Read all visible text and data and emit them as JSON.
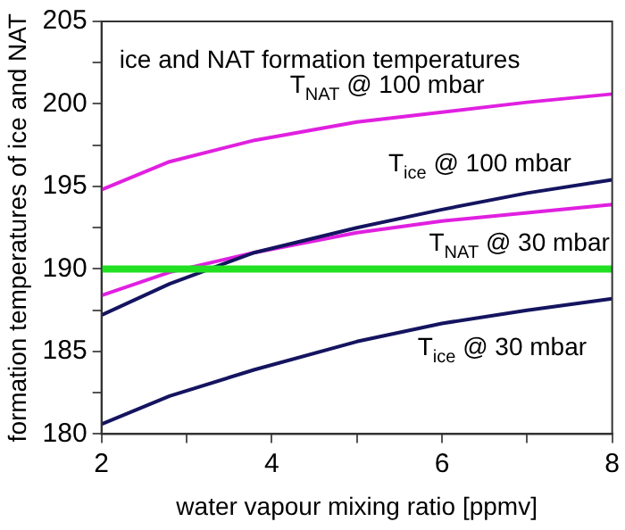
{
  "chart_data": {
    "type": "line",
    "title": "ice and NAT formation temperatures",
    "xlabel": "water vapour mixing ratio [ppmv]",
    "ylabel": "formation temperatures of ice and NAT",
    "series": [
      {
        "name": "T$_{NAT}$ @ 100 mbar",
        "color": "#e020e0",
        "x": [
          2,
          2.8,
          3.8,
          5,
          6,
          7,
          8
        ],
        "values": [
          194.8,
          196.5,
          197.8,
          198.9,
          199.5,
          200.1,
          200.6
        ]
      },
      {
        "name": "T$_{ice}$ @ 100 mbar",
        "color": "#141460",
        "x": [
          2,
          2.8,
          3.8,
          5,
          6,
          7,
          8
        ],
        "values": [
          187.2,
          189.1,
          191.0,
          192.5,
          193.6,
          194.6,
          195.4
        ]
      },
      {
        "name": "T$_{NAT}$ @ 30 mbar",
        "color": "#e020e0",
        "x": [
          2,
          2.8,
          3.8,
          5,
          6,
          7,
          8
        ],
        "values": [
          188.4,
          189.8,
          191.0,
          192.2,
          192.9,
          193.4,
          193.9
        ]
      },
      {
        "name": "T$_{ice}$ @ 30 mbar",
        "color": "#141460",
        "x": [
          2,
          2.8,
          3.8,
          5,
          6,
          7,
          8
        ],
        "values": [
          180.6,
          182.3,
          183.9,
          185.6,
          186.7,
          187.5,
          188.2
        ]
      }
    ],
    "ref_lines": [
      {
        "axis": "y",
        "value": 190,
        "color": "#22e022"
      }
    ],
    "xlim": [
      2,
      8
    ],
    "xticks": [
      2,
      {
        "value": 3,
        "label": null
      },
      4,
      {
        "value": 5,
        "label": null
      },
      6,
      {
        "value": 7,
        "label": null
      },
      8
    ],
    "ylim": [
      180,
      205
    ],
    "yticks": [
      180,
      {
        "value": 182.5,
        "label": null
      },
      185,
      {
        "value": 187.5,
        "label": null
      },
      190,
      {
        "value": 192.5,
        "label": null
      },
      195,
      {
        "value": 197.5,
        "label": null
      },
      200,
      {
        "value": 202.5,
        "label": null
      },
      205
    ],
    "grid": false,
    "legend": false,
    "marker": "none",
    "line_style": "solid"
  }
}
